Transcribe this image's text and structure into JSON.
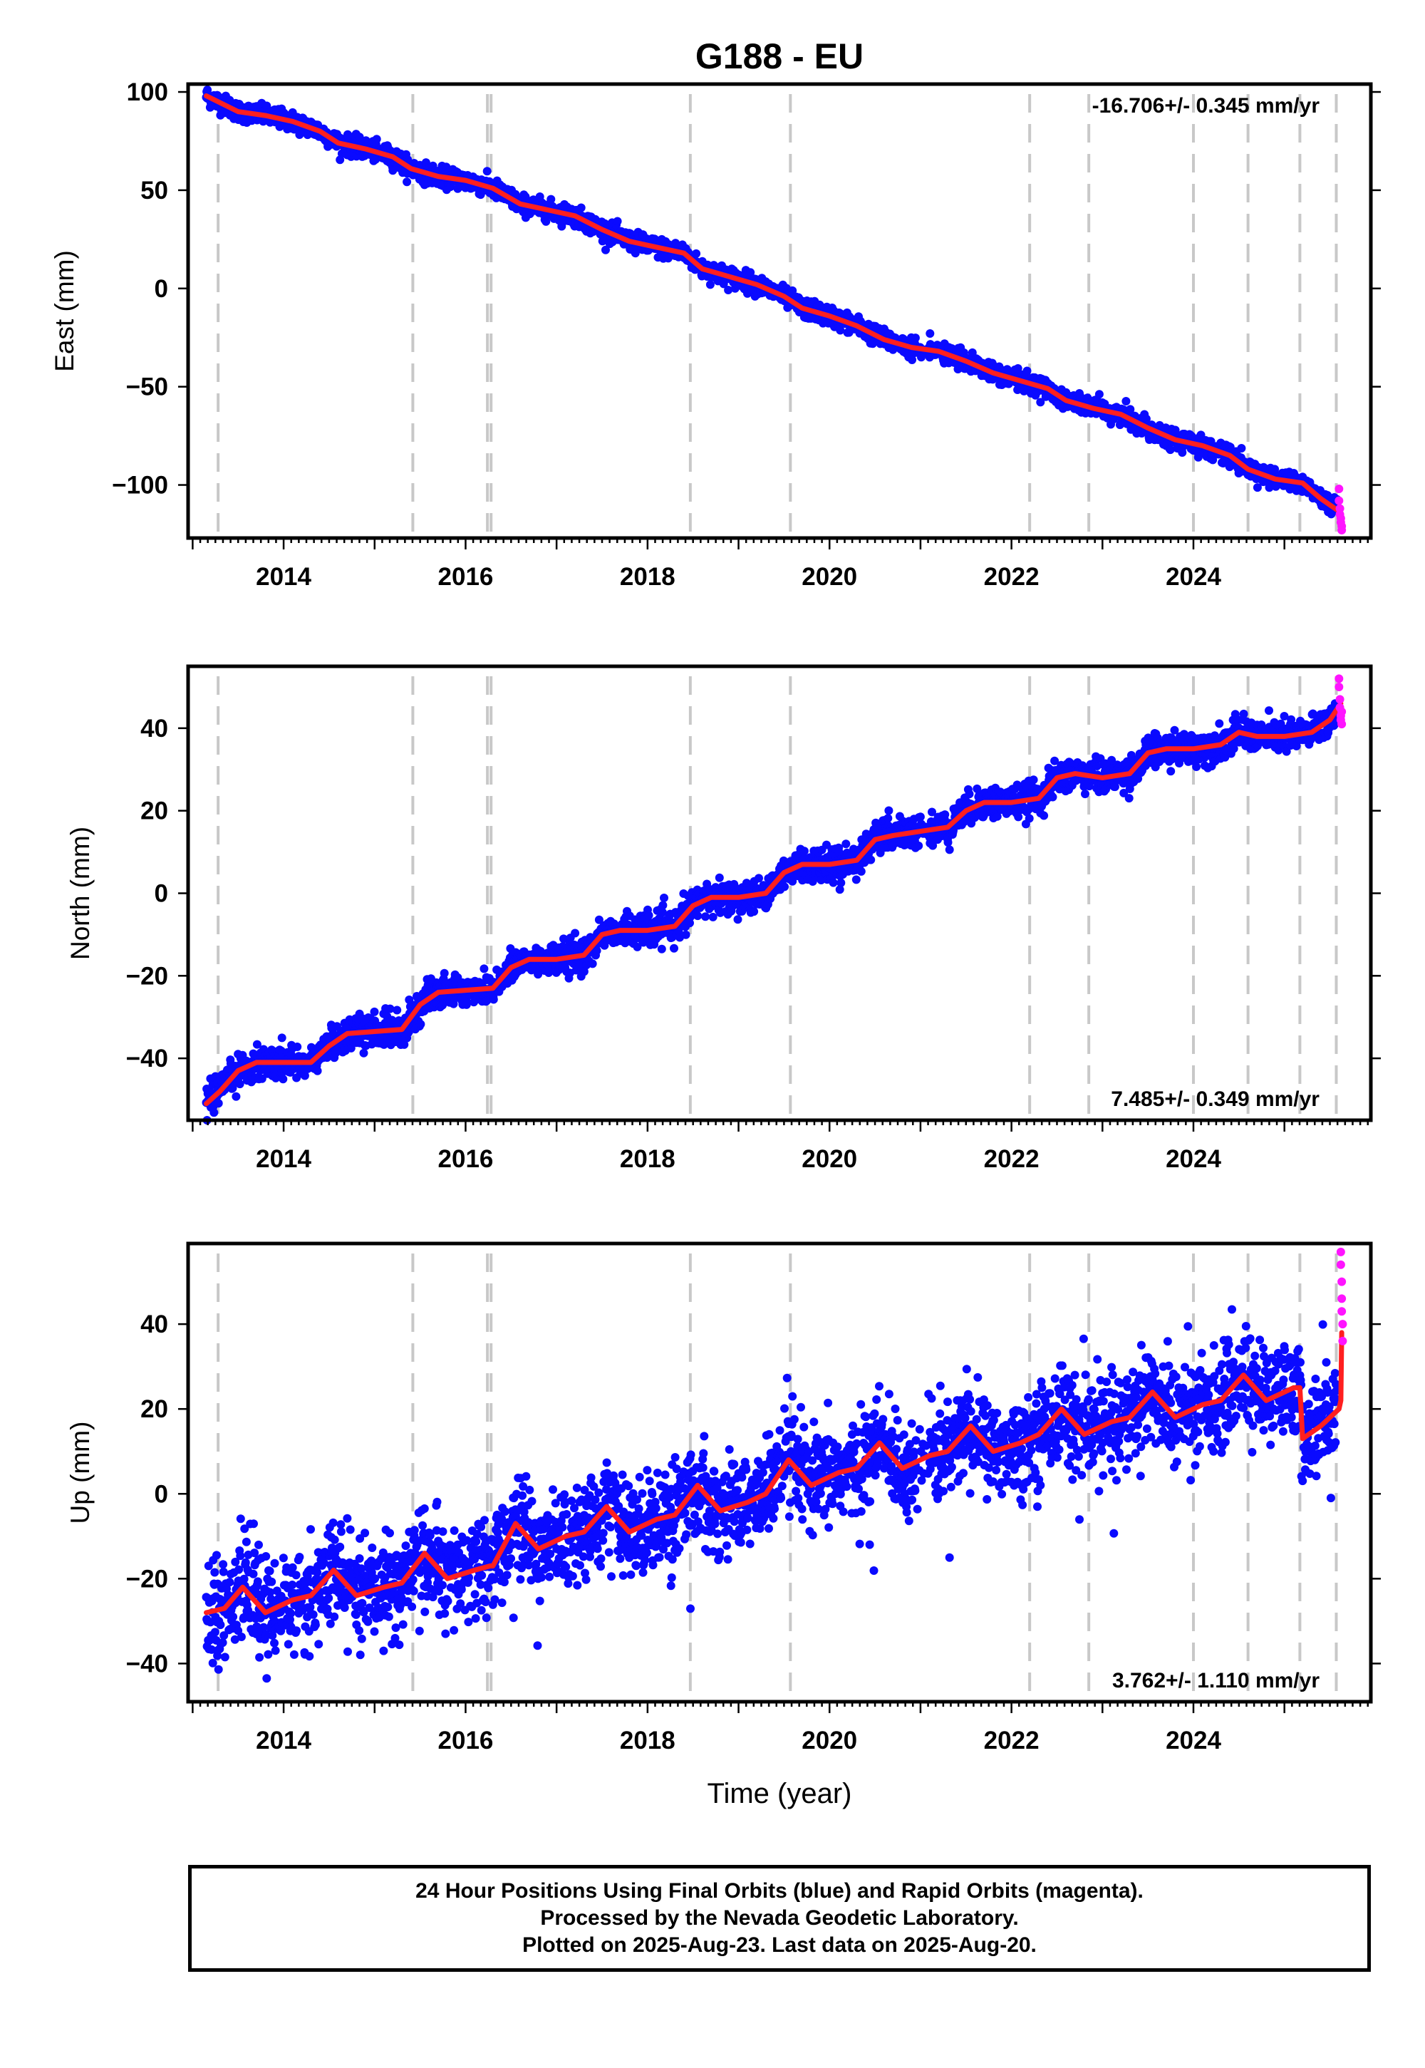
{
  "title": "G188 - EU",
  "colors": {
    "final": "#0a0aff",
    "rapid": "#ff14ff",
    "model": "#ff1f1f",
    "dash": "#c8c8c8"
  },
  "footer": {
    "line1": "24 Hour Positions Using Final Orbits (blue) and Rapid Orbits (magenta).",
    "line2": "Processed by the Nevada Geodetic Laboratory.",
    "line3": "Plotted on 2025-Aug-23. Last data on 2025-Aug-20."
  },
  "chart_data": [
    {
      "type": "scatter",
      "title": "G188 - EU",
      "xlabel": "",
      "ylabel": "East (mm)",
      "xlim": [
        2012.95,
        2025.95
      ],
      "ylim": [
        -127,
        104
      ],
      "xticks": [
        2014,
        2016,
        2018,
        2020,
        2022,
        2024
      ],
      "yticks": [
        -100,
        -50,
        0,
        50,
        100
      ],
      "rate_label": "-16.706+/- 0.345 mm/yr",
      "rate_position": "top-right",
      "event_lines": [
        2013.28,
        2015.42,
        2016.24,
        2016.28,
        2018.47,
        2019.57,
        2022.2,
        2022.85,
        2024.0,
        2024.6,
        2025.17,
        2025.57
      ],
      "series": [
        {
          "kind": "model",
          "x": [
            2013.15,
            2013.5,
            2013.8,
            2014.1,
            2014.4,
            2014.6,
            2014.9,
            2015.2,
            2015.4,
            2015.7,
            2016.0,
            2016.3,
            2016.6,
            2016.9,
            2017.2,
            2017.5,
            2017.8,
            2018.1,
            2018.4,
            2018.6,
            2018.9,
            2019.2,
            2019.5,
            2019.7,
            2020.0,
            2020.3,
            2020.6,
            2020.9,
            2021.2,
            2021.5,
            2021.8,
            2022.1,
            2022.4,
            2022.6,
            2022.9,
            2023.2,
            2023.5,
            2023.8,
            2024.1,
            2024.4,
            2024.6,
            2024.9,
            2025.2,
            2025.4,
            2025.62
          ],
          "y": [
            98,
            90,
            88,
            85,
            80,
            74,
            71,
            67,
            61,
            57,
            55,
            51,
            43,
            40,
            37,
            30,
            24,
            21,
            18,
            10,
            6,
            2,
            -4,
            -10,
            -14,
            -19,
            -26,
            -30,
            -32,
            -37,
            -43,
            -47,
            -51,
            -57,
            -61,
            -64,
            -71,
            -77,
            -80,
            -85,
            -92,
            -97,
            -99,
            -107,
            -114
          ]
        },
        {
          "kind": "rapid",
          "x": [
            2025.6,
            2025.6,
            2025.61,
            2025.61,
            2025.62,
            2025.62,
            2025.63,
            2025.63
          ],
          "y": [
            -102,
            -108,
            -112,
            -115,
            -117,
            -119,
            -121,
            -123
          ]
        }
      ]
    },
    {
      "type": "scatter",
      "title": "",
      "xlabel": "",
      "ylabel": "North (mm)",
      "xlim": [
        2012.95,
        2025.95
      ],
      "ylim": [
        -55,
        55
      ],
      "xticks": [
        2014,
        2016,
        2018,
        2020,
        2022,
        2024
      ],
      "yticks": [
        -40,
        -20,
        0,
        20,
        40
      ],
      "rate_label": "7.485+/- 0.349 mm/yr",
      "rate_position": "bottom-right",
      "event_lines": [
        2013.28,
        2015.42,
        2016.24,
        2016.28,
        2018.47,
        2019.57,
        2022.2,
        2022.85,
        2024.0,
        2024.6,
        2025.17,
        2025.57
      ],
      "series": [
        {
          "kind": "model",
          "x": [
            2013.15,
            2013.3,
            2013.5,
            2013.7,
            2014.0,
            2014.3,
            2014.5,
            2014.7,
            2015.0,
            2015.3,
            2015.5,
            2015.7,
            2016.0,
            2016.3,
            2016.5,
            2016.7,
            2017.0,
            2017.3,
            2017.5,
            2017.7,
            2018.0,
            2018.3,
            2018.5,
            2018.7,
            2019.0,
            2019.3,
            2019.5,
            2019.7,
            2020.0,
            2020.3,
            2020.5,
            2020.7,
            2021.0,
            2021.3,
            2021.5,
            2021.7,
            2022.0,
            2022.3,
            2022.5,
            2022.7,
            2023.0,
            2023.3,
            2023.5,
            2023.7,
            2024.0,
            2024.3,
            2024.5,
            2024.7,
            2025.0,
            2025.3,
            2025.5,
            2025.62
          ],
          "y": [
            -51,
            -48,
            -43,
            -41,
            -41,
            -41,
            -37,
            -34,
            -33.5,
            -33,
            -27,
            -24,
            -23.5,
            -23,
            -18,
            -16,
            -16,
            -15,
            -10,
            -9,
            -9,
            -8,
            -3,
            -1,
            -1,
            0,
            5,
            7,
            7,
            8,
            13,
            14,
            15,
            16,
            20,
            22,
            22,
            23,
            28,
            29,
            28,
            29,
            34,
            35,
            35,
            36,
            39,
            38,
            38,
            39,
            42,
            46
          ]
        },
        {
          "kind": "rapid",
          "x": [
            2025.6,
            2025.6,
            2025.61,
            2025.61,
            2025.62,
            2025.62,
            2025.63,
            2025.63
          ],
          "y": [
            52,
            50,
            47,
            45,
            43,
            42,
            41,
            44
          ]
        }
      ]
    },
    {
      "type": "scatter",
      "title": "",
      "xlabel": "Time (year)",
      "ylabel": "Up (mm)",
      "xlim": [
        2012.95,
        2025.95
      ],
      "ylim": [
        -49,
        59
      ],
      "xticks": [
        2014,
        2016,
        2018,
        2020,
        2022,
        2024
      ],
      "yticks": [
        -40,
        -20,
        0,
        20,
        40
      ],
      "rate_label": "3.762+/- 1.110 mm/yr",
      "rate_position": "bottom-right",
      "event_lines": [
        2013.28,
        2015.42,
        2016.24,
        2016.28,
        2018.47,
        2019.57,
        2022.2,
        2022.85,
        2024.0,
        2024.6,
        2025.17,
        2025.57
      ],
      "series": [
        {
          "kind": "model",
          "x": [
            2013.15,
            2013.35,
            2013.55,
            2013.8,
            2014.1,
            2014.3,
            2014.55,
            2014.8,
            2015.1,
            2015.3,
            2015.55,
            2015.8,
            2016.1,
            2016.27,
            2016.3,
            2016.55,
            2016.8,
            2017.1,
            2017.3,
            2017.55,
            2017.8,
            2018.1,
            2018.3,
            2018.55,
            2018.8,
            2019.1,
            2019.3,
            2019.55,
            2019.8,
            2020.1,
            2020.3,
            2020.55,
            2020.8,
            2021.1,
            2021.3,
            2021.55,
            2021.8,
            2022.1,
            2022.3,
            2022.55,
            2022.8,
            2023.1,
            2023.3,
            2023.55,
            2023.8,
            2024.1,
            2024.3,
            2024.55,
            2024.8,
            2025.1,
            2025.17,
            2025.2,
            2025.4,
            2025.6,
            2025.62,
            2025.63
          ],
          "y": [
            -28,
            -27,
            -22,
            -28,
            -25,
            -24,
            -18,
            -24,
            -22,
            -21,
            -14,
            -20,
            -18,
            -17,
            -17,
            -7,
            -13,
            -10,
            -9,
            -3,
            -9,
            -6,
            -5,
            2,
            -4,
            -2,
            0,
            8,
            2,
            5,
            6,
            12,
            6,
            9,
            10,
            16,
            10,
            12,
            14,
            20,
            14,
            17,
            18,
            24,
            18,
            21,
            22,
            28,
            22,
            25,
            25,
            13,
            16,
            20,
            22,
            38
          ]
        },
        {
          "kind": "rapid",
          "x": [
            2025.62,
            2025.62,
            2025.63,
            2025.63,
            2025.63,
            2025.64,
            2025.64
          ],
          "y": [
            57,
            54,
            50,
            46,
            43,
            40,
            36
          ]
        }
      ]
    }
  ]
}
